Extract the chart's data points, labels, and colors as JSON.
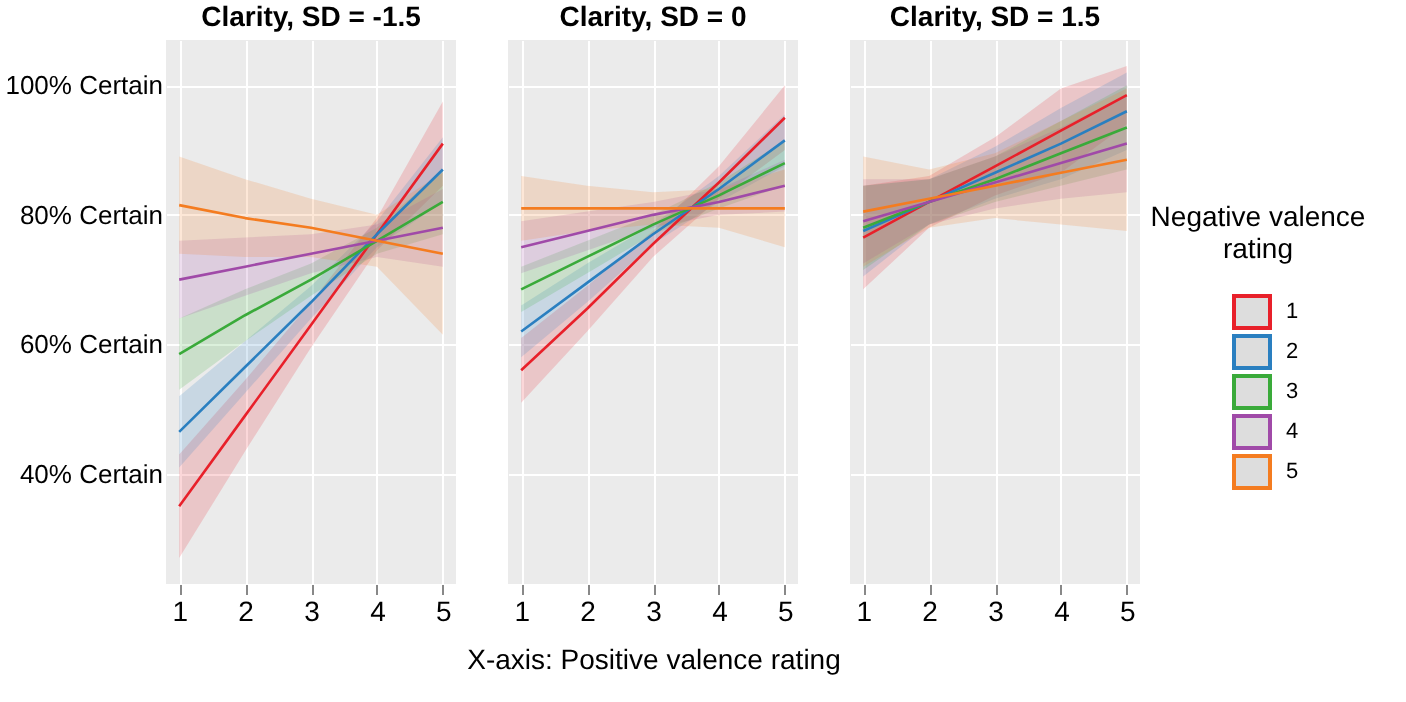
{
  "chart_data": [
    {
      "type": "line",
      "title": "Clarity, SD = -1.5",
      "x": [
        1,
        2,
        3,
        4,
        5
      ],
      "xlim": [
        0.8,
        5.2
      ],
      "xticks": [
        1,
        2,
        3,
        4,
        5
      ],
      "ylim": [
        23,
        107
      ],
      "yticks": [
        {
          "value": 40,
          "label": "40% Certain"
        },
        {
          "value": 60,
          "label": "60% Certain"
        },
        {
          "value": 80,
          "label": "80% Certain"
        },
        {
          "value": 100,
          "label": "100% Certain"
        }
      ],
      "grid": true,
      "series": [
        {
          "name": "1",
          "color": "#e8202a",
          "values": [
            35,
            49,
            63,
            77,
            91
          ],
          "lower": [
            27,
            43.5,
            59.5,
            74.5,
            84.5
          ],
          "upper": [
            43,
            54.5,
            66.5,
            79.5,
            97.5
          ]
        },
        {
          "name": "2",
          "color": "#2a7fc0",
          "values": [
            46.5,
            56.5,
            66.5,
            77,
            87
          ],
          "lower": [
            41,
            52.5,
            64,
            75,
            82
          ],
          "upper": [
            52,
            60.5,
            69,
            79,
            92
          ]
        },
        {
          "name": "3",
          "color": "#3aaa3a",
          "values": [
            58.5,
            64.5,
            70,
            76,
            82
          ],
          "lower": [
            53,
            60.5,
            67.5,
            74,
            77
          ],
          "upper": [
            64,
            68.5,
            72.5,
            78,
            87
          ]
        },
        {
          "name": "4",
          "color": "#a04aa8",
          "values": [
            70,
            72,
            74,
            76,
            78
          ],
          "lower": [
            64,
            67.5,
            71,
            73.5,
            72
          ],
          "upper": [
            76,
            76.5,
            77,
            78.5,
            84
          ]
        },
        {
          "name": "5",
          "color": "#f47c20",
          "values": [
            81.5,
            79.5,
            78,
            76,
            74
          ],
          "lower": [
            74,
            73.5,
            73.5,
            72,
            61.5
          ],
          "upper": [
            89,
            85.5,
            82.5,
            80,
            86.5
          ]
        }
      ]
    },
    {
      "type": "line",
      "title": "Clarity, SD = 0",
      "xlabel": "X-axis: Positive valence rating",
      "x": [
        1,
        2,
        3,
        4,
        5
      ],
      "xlim": [
        0.8,
        5.2
      ],
      "xticks": [
        1,
        2,
        3,
        4,
        5
      ],
      "ylim": [
        23,
        107
      ],
      "yticks": [
        40,
        60,
        80,
        100
      ],
      "grid": true,
      "tick_labels": "x",
      "series": [
        {
          "name": "1",
          "color": "#e8202a",
          "values": [
            56,
            65.5,
            75.5,
            85,
            95
          ],
          "lower": [
            51,
            62,
            73.5,
            82.5,
            90
          ],
          "upper": [
            61,
            69,
            77.5,
            87.5,
            100
          ]
        },
        {
          "name": "2",
          "color": "#2a7fc0",
          "values": [
            62,
            69.5,
            77,
            84,
            91.5
          ],
          "lower": [
            58,
            66.5,
            75.5,
            82,
            87.5
          ],
          "upper": [
            66,
            72.5,
            78.5,
            86,
            95.5
          ]
        },
        {
          "name": "3",
          "color": "#3aaa3a",
          "values": [
            68.5,
            73.5,
            78.5,
            83,
            88
          ],
          "lower": [
            65,
            71,
            77,
            81,
            84.5
          ],
          "upper": [
            72,
            76,
            80,
            85,
            91.5
          ]
        },
        {
          "name": "4",
          "color": "#a04aa8",
          "values": [
            75,
            77.5,
            80,
            82,
            84.5
          ],
          "lower": [
            71,
            74.5,
            78,
            80,
            80.5
          ],
          "upper": [
            79,
            80.5,
            82,
            84,
            88.5
          ]
        },
        {
          "name": "5",
          "color": "#f47c20",
          "values": [
            81,
            81,
            81,
            81,
            81
          ],
          "lower": [
            76,
            77.5,
            78.5,
            78,
            75
          ],
          "upper": [
            86,
            84.5,
            83.5,
            84,
            87
          ]
        }
      ]
    },
    {
      "type": "line",
      "title": "Clarity, SD = 1.5",
      "x": [
        1,
        2,
        3,
        4,
        5
      ],
      "xlim": [
        0.8,
        5.2
      ],
      "xticks": [
        1,
        2,
        3,
        4,
        5
      ],
      "ylim": [
        23,
        107
      ],
      "yticks": [
        40,
        60,
        80,
        100
      ],
      "grid": true,
      "legend": "right",
      "legend_title": "Negative valence rating",
      "tick_labels": "x",
      "series": [
        {
          "name": "1",
          "color": "#e8202a",
          "values": [
            76.5,
            82,
            87.5,
            93,
            98.5
          ],
          "lower": [
            68.5,
            78,
            83,
            86.5,
            94
          ],
          "upper": [
            84.5,
            86,
            92,
            99.5,
            103
          ]
        },
        {
          "name": "2",
          "color": "#2a7fc0",
          "values": [
            77.5,
            82,
            86.5,
            91,
            96
          ],
          "lower": [
            70.5,
            78.5,
            82.5,
            85.5,
            90
          ],
          "upper": [
            84.5,
            85.5,
            90.5,
            96.5,
            102
          ]
        },
        {
          "name": "3",
          "color": "#3aaa3a",
          "values": [
            78,
            82,
            85.5,
            89.5,
            93.5
          ],
          "lower": [
            71.5,
            78.5,
            82,
            84.5,
            87
          ],
          "upper": [
            84.5,
            85.5,
            89,
            94.5,
            100
          ]
        },
        {
          "name": "4",
          "color": "#a04aa8",
          "values": [
            79,
            82,
            85,
            88,
            91
          ],
          "lower": [
            72.5,
            78.5,
            81,
            82.5,
            83.5
          ],
          "upper": [
            85.5,
            85.5,
            89,
            93.5,
            98.5
          ]
        },
        {
          "name": "5",
          "color": "#f47c20",
          "values": [
            80.5,
            82.5,
            84.5,
            86.5,
            88.5
          ],
          "lower": [
            72,
            78,
            79.5,
            78.5,
            77.5
          ],
          "upper": [
            89,
            87,
            89.5,
            94.5,
            99.5
          ]
        }
      ]
    }
  ]
}
